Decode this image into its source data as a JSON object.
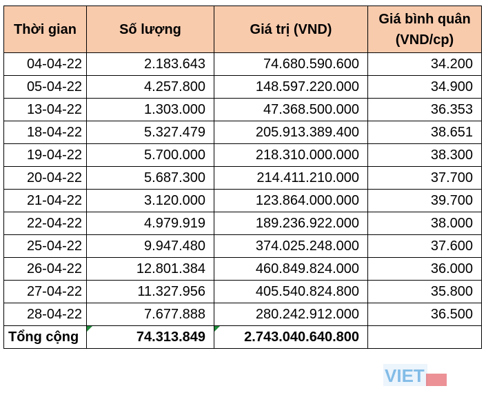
{
  "table": {
    "header": [
      "Thời gian",
      "Số lượng",
      "Giá trị (VND)",
      "Giá bình quân (VND/cp)"
    ],
    "rows": [
      [
        "04-04-22",
        "2.183.643",
        "74.680.590.600",
        "34.200"
      ],
      [
        "05-04-22",
        "4.257.800",
        "148.597.220.000",
        "34.900"
      ],
      [
        "13-04-22",
        "1.303.000",
        "47.368.500.000",
        "36.353"
      ],
      [
        "18-04-22",
        "5.327.479",
        "205.913.389.400",
        "38.651"
      ],
      [
        "19-04-22",
        "5.700.000",
        "218.310.000.000",
        "38.300"
      ],
      [
        "20-04-22",
        "5.687.300",
        "214.411.210.000",
        "37.700"
      ],
      [
        "21-04-22",
        "3.120.000",
        "123.864.000.000",
        "39.700"
      ],
      [
        "22-04-22",
        "4.979.919",
        "189.236.922.000",
        "38.000"
      ],
      [
        "25-04-22",
        "9.947.480",
        "374.025.248.000",
        "37.600"
      ],
      [
        "26-04-22",
        "12.801.384",
        "460.849.824.000",
        "36.000"
      ],
      [
        "27-04-22",
        "11.327.956",
        "405.540.824.800",
        "35.800"
      ],
      [
        "28-04-22",
        "7.677.888",
        "280.242.912.000",
        "36.500"
      ]
    ],
    "total": [
      "Tổng cộng",
      "74.313.849",
      "2.743.040.640.800"
    ]
  },
  "watermark": "VIET"
}
